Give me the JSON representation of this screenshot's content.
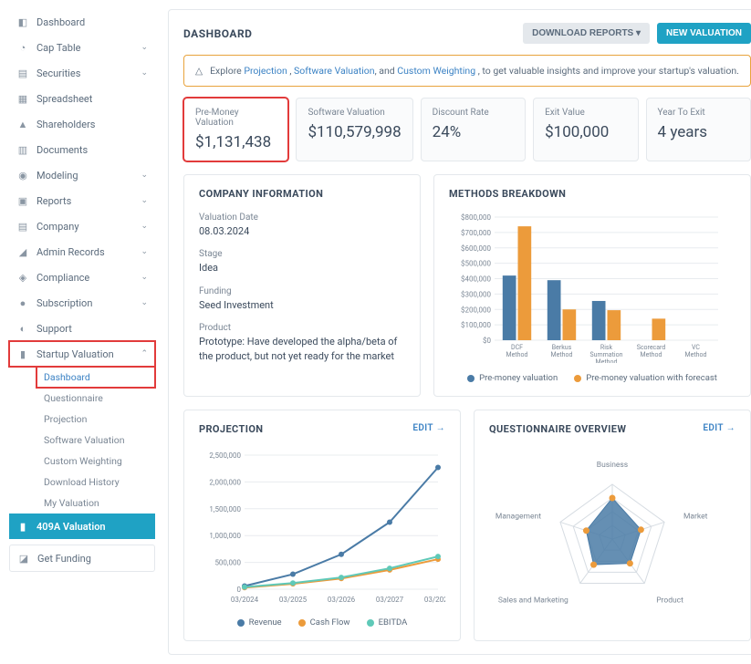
{
  "sidebar": {
    "items": [
      {
        "label": "Dashboard",
        "icon": "◧"
      },
      {
        "label": "Cap Table",
        "icon": "◔",
        "chev": true
      },
      {
        "label": "Securities",
        "icon": "▤",
        "chev": true
      },
      {
        "label": "Spreadsheet",
        "icon": "▦"
      },
      {
        "label": "Shareholders",
        "icon": "▲"
      },
      {
        "label": "Documents",
        "icon": "▥"
      },
      {
        "label": "Modeling",
        "icon": "◉",
        "chev": true
      },
      {
        "label": "Reports",
        "icon": "▣",
        "chev": true
      },
      {
        "label": "Company",
        "icon": "▤",
        "chev": true
      },
      {
        "label": "Admin Records",
        "icon": "◢",
        "chev": true
      },
      {
        "label": "Compliance",
        "icon": "◈",
        "chev": true
      },
      {
        "label": "Subscription",
        "icon": "●",
        "chev": true
      },
      {
        "label": "Support",
        "icon": "◐"
      }
    ],
    "startup_valuation": {
      "label": "Startup Valuation",
      "sub": [
        {
          "label": "Dashboard",
          "hl": true
        },
        {
          "label": "Questionnaire"
        },
        {
          "label": "Projection"
        },
        {
          "label": "Software Valuation"
        },
        {
          "label": "Custom Weighting"
        },
        {
          "label": "Download History"
        },
        {
          "label": "My Valuation"
        }
      ]
    },
    "409a": "409A Valuation",
    "get_funding": "Get Funding"
  },
  "header": {
    "title": "DASHBOARD",
    "download": "DOWNLOAD REPORTS",
    "new_valuation": "NEW VALUATION"
  },
  "alert": {
    "pre": "Explore ",
    "l1": "Projection",
    "l2": "Software Valuation",
    "l3": "Custom Weighting",
    "post": ", to get valuable insights and improve your startup's valuation."
  },
  "metrics": [
    {
      "label": "Pre-Money Valuation",
      "value": "$1,131,438",
      "hl": true
    },
    {
      "label": "Software Valuation",
      "value": "$110,579,998"
    },
    {
      "label": "Discount Rate",
      "value": "24%"
    },
    {
      "label": "Exit Value",
      "value": "$100,000"
    },
    {
      "label": "Year To Exit",
      "value": "4 years"
    }
  ],
  "company_info": {
    "title": "COMPANY INFORMATION",
    "fields": [
      {
        "lab": "Valuation Date",
        "val": "08.03.2024"
      },
      {
        "lab": "Stage",
        "val": "Idea"
      },
      {
        "lab": "Funding",
        "val": "Seed Investment"
      },
      {
        "lab": "Product",
        "val": "Prototype: Have developed the alpha/beta of the product, but not yet ready for the market"
      }
    ]
  },
  "methods": {
    "title": "METHODS BREAKDOWN",
    "categories": [
      "DCF Method",
      "Berkus Method",
      "Risk Summation Method",
      "Scorecard Method",
      "VC Method"
    ],
    "series1": {
      "name": "Pre-money valuation",
      "values": [
        420000,
        390000,
        255000,
        0,
        0
      ],
      "color": "#4a7ba6"
    },
    "series2": {
      "name": "Pre-money valuation with forecast",
      "values": [
        740000,
        200000,
        195000,
        140000,
        0
      ],
      "color": "#ec9b3b"
    },
    "ylim": [
      0,
      800000
    ],
    "ytick_step": 100000,
    "ylabels": [
      "$0",
      "$100,000",
      "$200,000",
      "$300,000",
      "$400,000",
      "$500,000",
      "$600,000",
      "$700,000",
      "$800,000"
    ],
    "grid_color": "#e8ecef",
    "text_color": "#7a8694",
    "font_size": 8
  },
  "projection": {
    "title": "PROJECTION",
    "edit": "EDIT",
    "xlabels": [
      "03/2024",
      "03/2025",
      "03/2026",
      "03/2027",
      "03/2028"
    ],
    "series": [
      {
        "name": "Revenue",
        "values": [
          60000,
          280000,
          650000,
          1250000,
          2270000
        ],
        "color": "#4a7ba6"
      },
      {
        "name": "Cash Flow",
        "values": [
          30000,
          100000,
          200000,
          360000,
          560000
        ],
        "color": "#ec9b3b"
      },
      {
        "name": "EBITDA",
        "values": [
          40000,
          115000,
          220000,
          390000,
          610000
        ],
        "color": "#5fc9b8"
      }
    ],
    "ylim": [
      0,
      2500000
    ],
    "ytick_step": 500000,
    "ylabels": [
      "0",
      "500,000",
      "1,000,000",
      "1,500,000",
      "2,000,000",
      "2,500,000"
    ],
    "grid_color": "#e8ecef"
  },
  "questionnaire": {
    "title": "QUESTIONNAIRE OVERVIEW",
    "edit": "EDIT",
    "axes": [
      "Business",
      "Market",
      "Product",
      "Sales and Marketing",
      "Management"
    ],
    "values": [
      0.75,
      0.55,
      0.55,
      0.58,
      0.5
    ],
    "fill_color": "#4a7ba6",
    "fill_opacity": 0.85,
    "marker_color": "#ec9b3b",
    "grid_color": "#d6dce2"
  }
}
